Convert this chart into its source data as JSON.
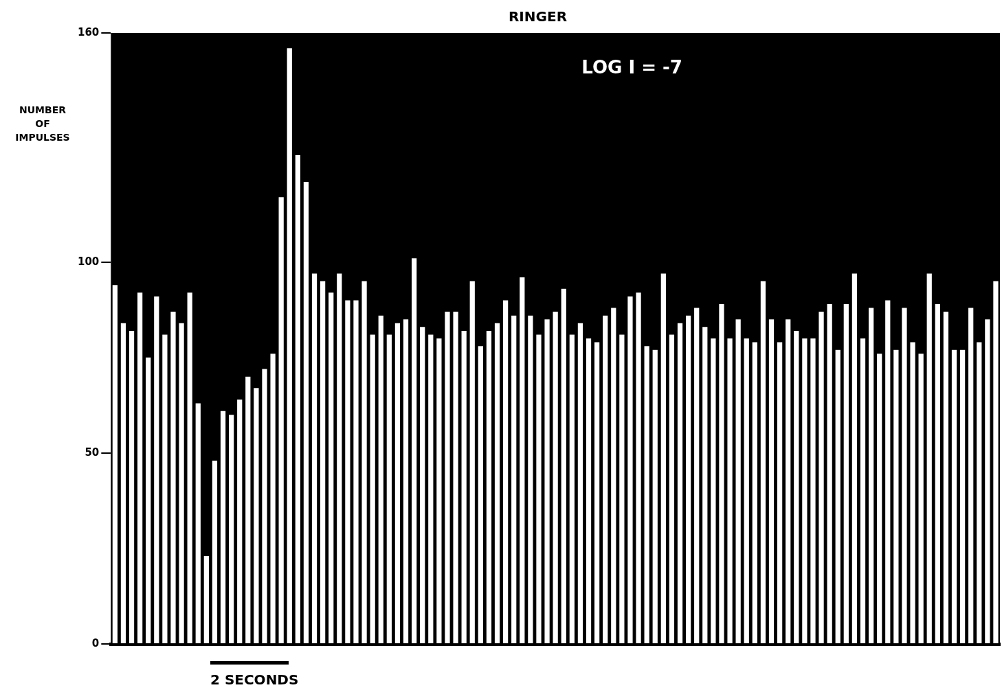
{
  "chart_data": {
    "type": "bar",
    "title": "RINGER",
    "ylabel": "NUMBER OF IMPULSES",
    "annotations": [
      "LOG I = -7",
      "2 SECONDS"
    ],
    "categories": [
      null,
      null,
      null,
      null,
      null,
      null,
      null,
      null,
      null,
      null,
      null,
      null,
      null,
      null,
      null,
      null,
      null,
      null,
      null,
      null,
      null,
      null,
      null,
      null,
      null,
      null,
      null,
      null,
      null,
      null,
      null,
      null,
      null,
      null,
      null,
      null,
      null,
      null,
      null,
      null,
      null,
      null,
      null,
      null,
      null,
      null,
      null,
      null,
      null,
      null,
      null,
      null,
      null,
      null,
      null,
      null,
      null,
      null,
      null,
      null,
      null,
      null,
      null,
      null,
      null,
      null,
      null,
      null,
      null,
      null,
      null,
      null,
      null,
      null,
      null,
      null,
      null,
      null,
      null,
      null,
      null,
      null,
      null,
      null,
      null,
      null,
      null,
      null,
      null,
      null,
      null,
      null,
      null,
      null,
      null,
      null,
      null,
      null,
      null,
      null,
      null,
      null,
      null,
      null,
      null,
      null,
      null
    ],
    "values": [
      94,
      84,
      82,
      92,
      75,
      91,
      81,
      87,
      84,
      92,
      63,
      23,
      48,
      61,
      60,
      64,
      70,
      67,
      72,
      76,
      117,
      156,
      128,
      121,
      97,
      95,
      92,
      97,
      90,
      90,
      95,
      81,
      86,
      81,
      84,
      85,
      101,
      83,
      81,
      80,
      87,
      87,
      82,
      95,
      78,
      82,
      84,
      90,
      86,
      96,
      86,
      81,
      85,
      87,
      93,
      81,
      84,
      80,
      79,
      86,
      88,
      81,
      91,
      92,
      78,
      77,
      97,
      81,
      84,
      86,
      88,
      83,
      80,
      89,
      80,
      85,
      80,
      79,
      95,
      85,
      79,
      85,
      82,
      80,
      80,
      87,
      89,
      77,
      89,
      97,
      80,
      88,
      76,
      90,
      77,
      88,
      79,
      76,
      97,
      89,
      87,
      77,
      77,
      88,
      79,
      85,
      95
    ],
    "color": "#ffffff",
    "ylim": [
      0,
      160
    ],
    "yticks": [
      0,
      50,
      100,
      160
    ],
    "grid": false,
    "legend": false
  }
}
